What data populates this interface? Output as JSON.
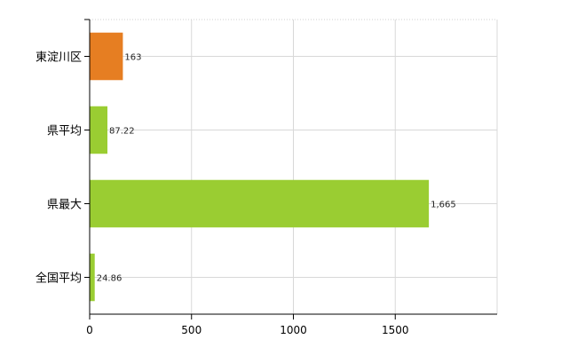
{
  "chart_data": {
    "type": "bar",
    "orientation": "horizontal",
    "categories": [
      "東淀川区",
      "県平均",
      "県最大",
      "全国平均"
    ],
    "values": [
      163,
      87.22,
      1665,
      24.86
    ],
    "value_labels": [
      "163",
      "87.22",
      "1,665",
      "24.86"
    ],
    "bar_colors": [
      "#e67e22",
      "#9acd32",
      "#9acd32",
      "#9acd32"
    ],
    "title": "",
    "xlabel": "",
    "ylabel": "",
    "xlim": [
      0,
      2000
    ],
    "x_ticks": [
      0,
      500,
      1000,
      1500
    ],
    "x_tick_labels": [
      "0",
      "500",
      "1000",
      "1500"
    ],
    "grid": true
  }
}
